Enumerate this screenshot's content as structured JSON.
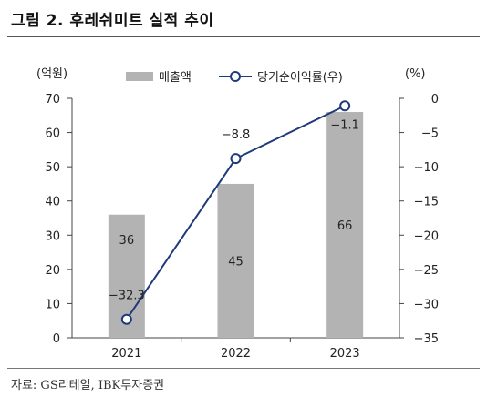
{
  "figure": {
    "title": "그림 2. 후레쉬미트 실적 추이",
    "source": "자료: GS리테일, IBK투자증권"
  },
  "colors": {
    "bar": "#b3b3b3",
    "line": "#1f3a7a",
    "marker_fill": "#ffffff",
    "axis": "#444444"
  },
  "chart_data": {
    "type": "bar",
    "categories": [
      "2021",
      "2022",
      "2023"
    ],
    "left_axis_unit": "(억원)",
    "right_axis_unit": "(%)",
    "ylim_left": [
      0,
      70
    ],
    "ylim_right": [
      -35,
      0
    ],
    "left_ticks": [
      0,
      10,
      20,
      30,
      40,
      50,
      60,
      70
    ],
    "right_ticks": [
      0,
      -5,
      -10,
      -15,
      -20,
      -25,
      -30,
      -35
    ],
    "legend_position": "top",
    "series": [
      {
        "name": "매출액",
        "type": "bar",
        "axis": "left",
        "values": [
          36,
          45,
          66
        ],
        "labels": [
          "36",
          "45",
          "66"
        ]
      },
      {
        "name": "당기순이익률(우)",
        "type": "line",
        "axis": "right",
        "values": [
          -32.3,
          -8.8,
          -1.1
        ],
        "labels": [
          "-32.3",
          "-8.8",
          "-1.1"
        ]
      }
    ]
  }
}
